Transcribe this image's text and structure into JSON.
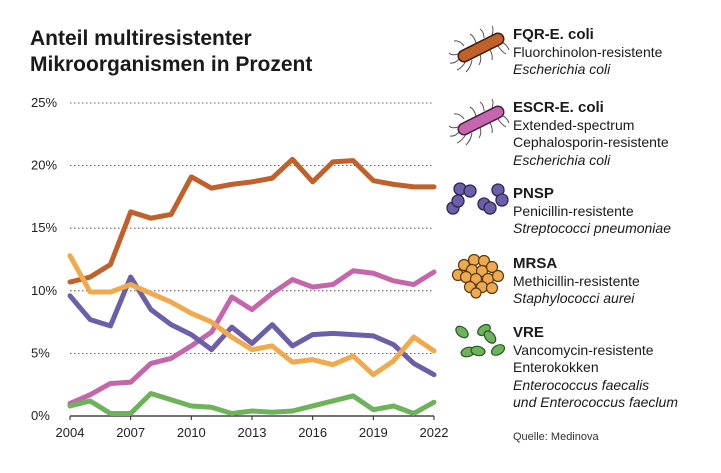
{
  "title_lines": [
    "Anteil multiresistenter",
    "Mikroorganismen in Prozent"
  ],
  "source": "Quelle: Medinova",
  "colors": {
    "fqr": "#c0602a",
    "escr": "#c466ab",
    "pnsp": "#6c5fa8",
    "mrsa": "#f0aa4e",
    "vre": "#6cb35c"
  },
  "legend": [
    {
      "abbr": "FQR-E. coli",
      "lines": [
        "Fluorchinolon-resistente"
      ],
      "italic": [
        "Escherichia coli"
      ],
      "icon": "bacillus-icon"
    },
    {
      "abbr": "ESCR-E. coli",
      "lines": [
        "Extended-spectrum",
        "Cephalosporin-resistente"
      ],
      "italic": [
        "Escherichia coli"
      ],
      "icon": "bacillus-icon"
    },
    {
      "abbr": "PNSP",
      "lines": [
        "Penicillin-resistente"
      ],
      "italic": [
        "Streptococci pneumoniae"
      ],
      "icon": "diplococci-icon"
    },
    {
      "abbr": "MRSA",
      "lines": [
        "Methicillin-resistente"
      ],
      "italic": [
        "Staphylococci aurei"
      ],
      "icon": "staphylococci-cluster-icon"
    },
    {
      "abbr": "VRE",
      "lines": [
        "Vancomycin-resistente",
        "Enterokokken"
      ],
      "italic": [
        "Enterococcus faecalis",
        "und Enterococcus faeclum"
      ],
      "icon": "enterococci-icon"
    }
  ],
  "chart_data": {
    "type": "line",
    "title": "Anteil multiresistenter Mikroorganismen in Prozent",
    "xlabel": "",
    "ylabel": "",
    "xlim": [
      2004,
      2022
    ],
    "ylim": [
      0,
      25
    ],
    "x": [
      2004,
      2005,
      2006,
      2007,
      2008,
      2009,
      2010,
      2011,
      2012,
      2013,
      2014,
      2015,
      2016,
      2017,
      2018,
      2019,
      2020,
      2021,
      2022
    ],
    "xticks": [
      "2004",
      "2007",
      "2010",
      "2013",
      "2016",
      "2019",
      "2022"
    ],
    "yticks": [
      "0%",
      "5%",
      "10%",
      "15%",
      "20%",
      "25%"
    ],
    "grid": "horizontal",
    "series": [
      {
        "name": "FQR-E. coli",
        "color": "#c0602a",
        "values": [
          10.7,
          11.1,
          12.1,
          16.3,
          15.8,
          16.1,
          19.1,
          18.2,
          18.5,
          18.7,
          19.0,
          20.5,
          18.7,
          20.3,
          20.4,
          18.8,
          18.5,
          18.3,
          18.3
        ]
      },
      {
        "name": "ESCR-E. coli",
        "color": "#c466ab",
        "values": [
          1.0,
          1.7,
          2.6,
          2.7,
          4.2,
          4.6,
          5.6,
          6.7,
          9.5,
          8.5,
          9.8,
          10.9,
          10.3,
          10.5,
          11.6,
          11.4,
          10.8,
          10.5,
          11.5
        ]
      },
      {
        "name": "PNSP",
        "color": "#6c5fa8",
        "values": [
          9.6,
          7.7,
          7.2,
          11.1,
          8.5,
          7.3,
          6.5,
          5.3,
          7.1,
          5.8,
          7.3,
          5.6,
          6.5,
          6.6,
          6.5,
          6.4,
          5.7,
          4.2,
          3.3
        ]
      },
      {
        "name": "MRSA",
        "color": "#f0aa4e",
        "values": [
          12.8,
          9.9,
          9.9,
          10.5,
          9.8,
          9.1,
          8.2,
          7.5,
          6.3,
          5.3,
          5.6,
          4.3,
          4.5,
          4.1,
          4.8,
          3.3,
          4.4,
          6.3,
          5.2
        ]
      },
      {
        "name": "VRE",
        "color": "#6cb35c",
        "values": [
          0.8,
          1.2,
          0.2,
          0.2,
          1.8,
          1.3,
          0.8,
          0.7,
          0.2,
          0.4,
          0.3,
          0.4,
          0.8,
          1.2,
          1.6,
          0.5,
          0.8,
          0.2,
          1.1
        ]
      }
    ]
  }
}
